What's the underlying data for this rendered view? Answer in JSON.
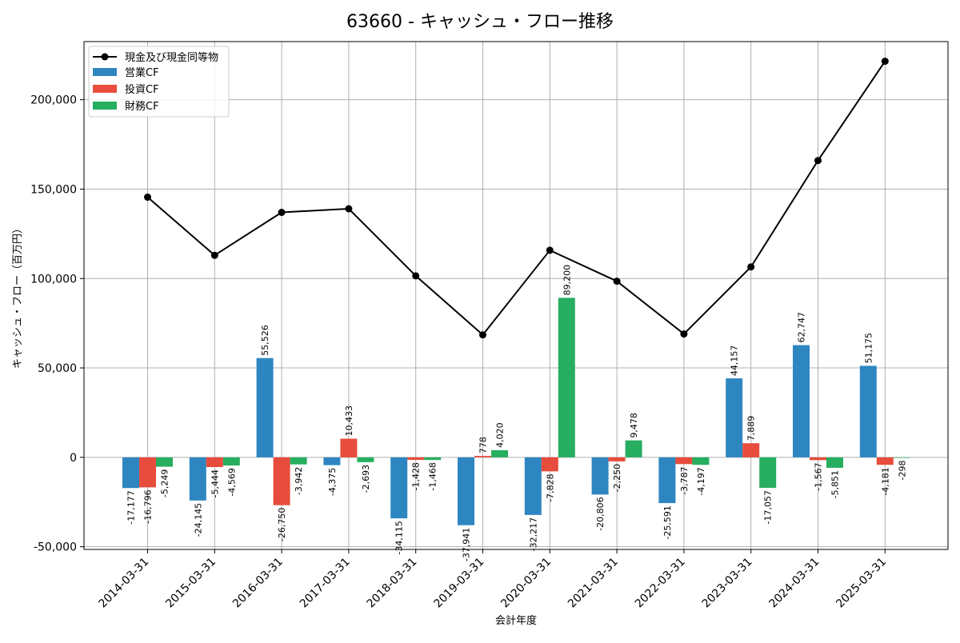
{
  "chart_data": {
    "type": "bar",
    "title": "63660 - キャッシュ・フロー推移",
    "xlabel": "会計年度",
    "ylabel": "キャッシュ・フロー（百万円）",
    "ylim": [
      -51500,
      232500
    ],
    "yticks": [
      -50000,
      0,
      50000,
      100000,
      150000,
      200000
    ],
    "ytick_labels": [
      "-50,000",
      "0",
      "50,000",
      "100,000",
      "150,000",
      "200,000"
    ],
    "grid": true,
    "legend_position": "top-left",
    "categories": [
      "2014-03-31",
      "2015-03-31",
      "2016-03-31",
      "2017-03-31",
      "2018-03-31",
      "2019-03-31",
      "2020-03-31",
      "2021-03-31",
      "2022-03-31",
      "2023-03-31",
      "2024-03-31",
      "2025-03-31"
    ],
    "line_series": {
      "name": "現金及び現金同等物",
      "color": "#000000",
      "values": [
        145500,
        113000,
        137000,
        139000,
        101500,
        68500,
        115800,
        98500,
        69000,
        106500,
        166000,
        221500
      ]
    },
    "series": [
      {
        "name": "営業CF",
        "color": "#2e86c1",
        "values": [
          -17177,
          -24145,
          55526,
          -4375,
          -34115,
          -37941,
          -32217,
          -20806,
          -25591,
          44157,
          62747,
          51175
        ],
        "labels": [
          "-17,177",
          "-24,145",
          "55,526",
          "-4,375",
          "-34,115",
          "-37,941",
          "-32,217",
          "-20,806",
          "-25,591",
          "44,157",
          "62,747",
          "51,175"
        ]
      },
      {
        "name": "投資CF",
        "color": "#e74c3c",
        "values": [
          -16796,
          -5444,
          -26750,
          10433,
          -1428,
          778,
          -7828,
          -2250,
          -3787,
          7889,
          -1567,
          -4181
        ],
        "labels": [
          "-16,796",
          "-5,444",
          "-26,750",
          "10,433",
          "-1,428",
          "778",
          "-7,828",
          "-2,250",
          "-3,787",
          "7,889",
          "-1,567",
          "-4,181"
        ]
      },
      {
        "name": "財務CF",
        "color": "#27ae60",
        "values": [
          -5249,
          -4569,
          -3942,
          -2693,
          -1468,
          4020,
          89200,
          9478,
          -4197,
          -17057,
          -5851,
          -298
        ],
        "labels": [
          "-5,249",
          "-4,569",
          "-3,942",
          "-2,693",
          "-1,468",
          "4,020",
          "89,200",
          "9,478",
          "-4,197",
          "-17,057",
          "-5,851",
          "-298"
        ]
      }
    ]
  }
}
